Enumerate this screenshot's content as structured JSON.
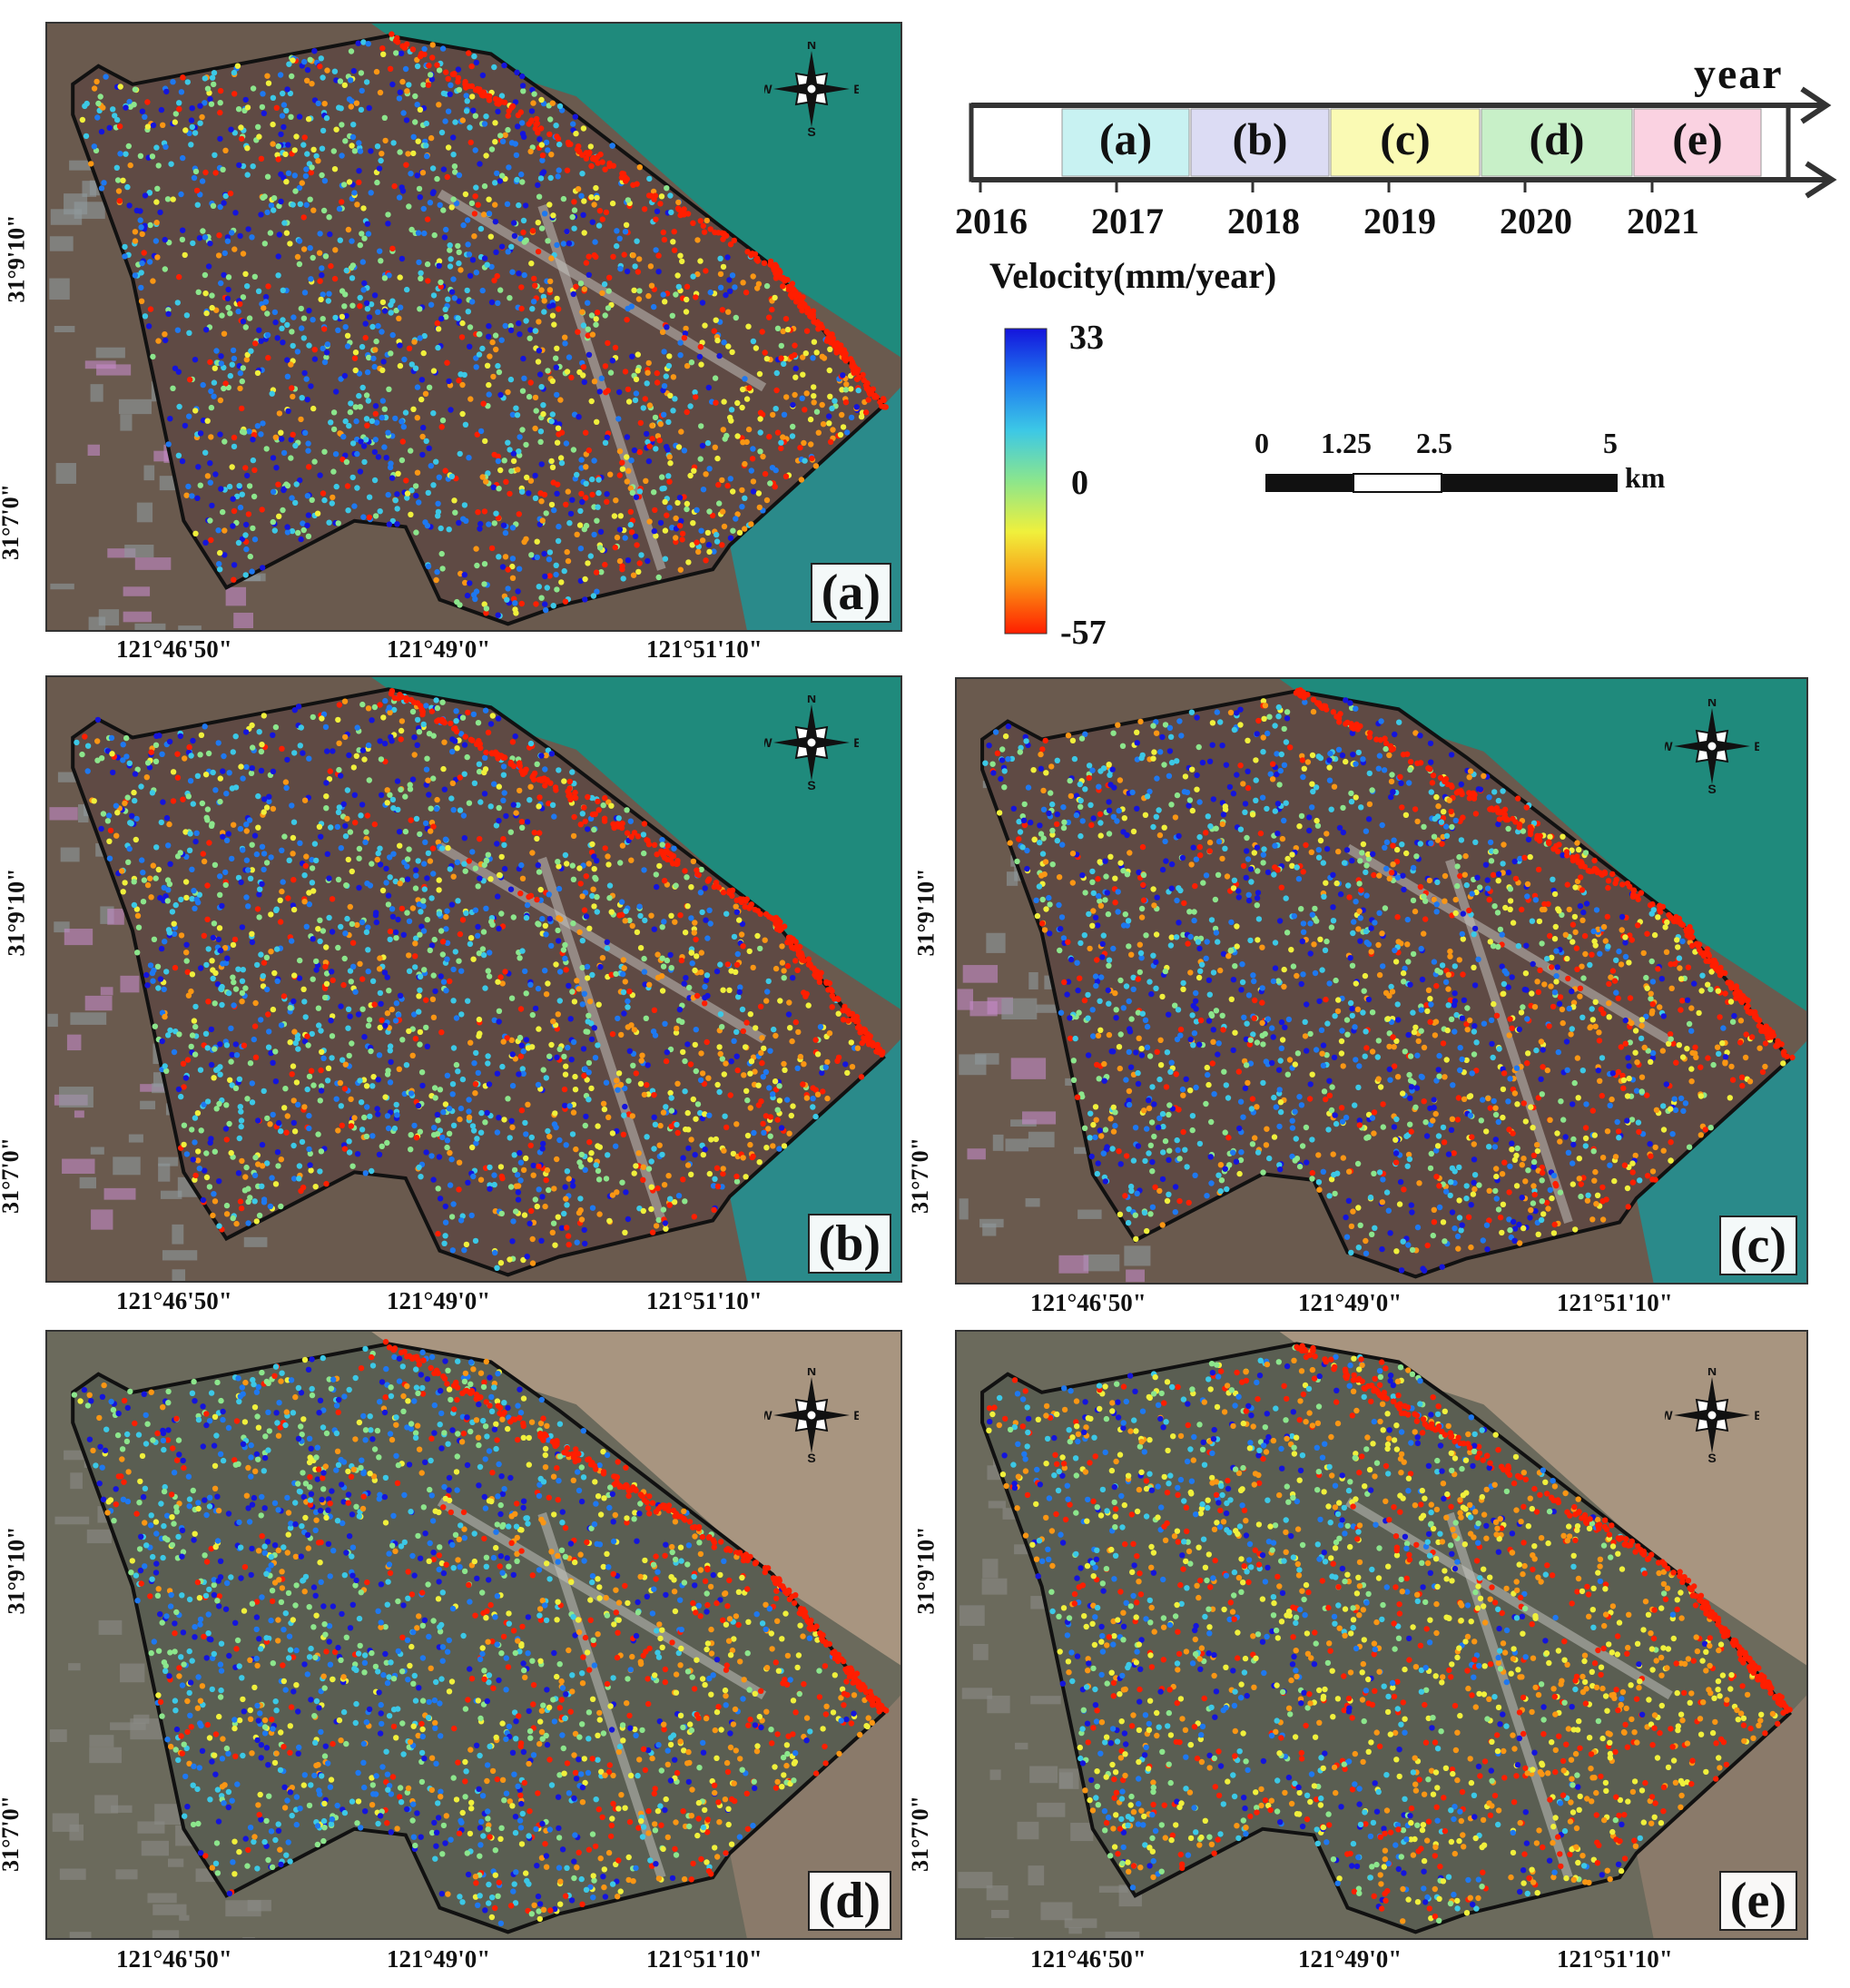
{
  "panels": [
    {
      "id": "a",
      "label": "(a)",
      "style": "sat-teal"
    },
    {
      "id": "b",
      "label": "(b)",
      "style": "sat-teal"
    },
    {
      "id": "c",
      "label": "(c)",
      "style": "sat-teal"
    },
    {
      "id": "d",
      "label": "(d)",
      "style": "sat-muddy"
    },
    {
      "id": "e",
      "label": "(e)",
      "style": "sat-muddy"
    }
  ],
  "axes": {
    "lat_labels": [
      "31°9'10\"",
      "31°7'0\""
    ],
    "lon_labels": [
      "121°46'50\"",
      "121°49'0\"",
      "121°51'10\""
    ]
  },
  "compass": {
    "n": "N",
    "s": "S",
    "e": "E",
    "w": "W"
  },
  "timeline": {
    "axis_label": "year",
    "years": [
      "2016",
      "2017",
      "2018",
      "2019",
      "2020",
      "2021"
    ],
    "periods": [
      {
        "label": "(a)",
        "color": "#c8f2f2"
      },
      {
        "label": "(b)",
        "color": "#dcdcf4"
      },
      {
        "label": "(c)",
        "color": "#fafab4"
      },
      {
        "label": "(d)",
        "color": "#c8f0c8"
      },
      {
        "label": "(e)",
        "color": "#fad2e1"
      }
    ]
  },
  "legend": {
    "title": "Velocity(mm/year)",
    "max": "33",
    "mid": "0",
    "min": "-57",
    "colors": [
      "#1414dc",
      "#1e78f0",
      "#3cc8e6",
      "#8ce68c",
      "#f0f03c",
      "#fa9614",
      "#ff1e00"
    ]
  },
  "scalebar": {
    "ticks": [
      "0",
      "1.25",
      "2.5",
      "5"
    ],
    "unit": "km"
  }
}
